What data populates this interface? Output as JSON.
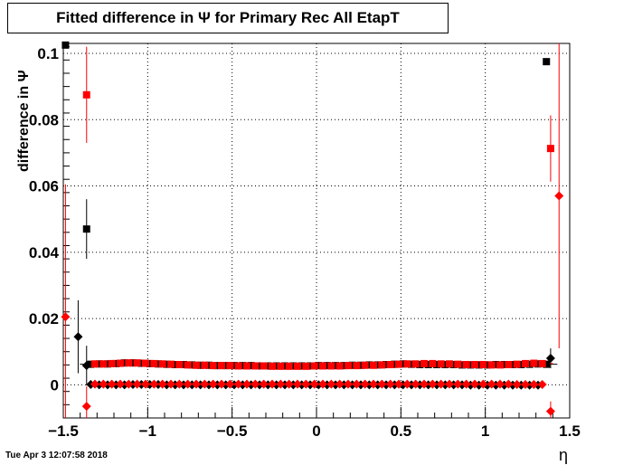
{
  "title": "Fitted difference in  Ψ  for Primary Rec All EtapT",
  "timestamp": "Tue Apr  3 12:07:58 2018",
  "chart_data": {
    "type": "scatter",
    "title": "Fitted difference in  Ψ  for Primary Rec All EtapT",
    "xlabel": "η",
    "ylabel": "difference in  Ψ",
    "xlim": [
      -1.5,
      1.5
    ],
    "ylim": [
      -0.01,
      0.103
    ],
    "grid": true,
    "x_ticks": [
      -1.5,
      -1,
      -0.5,
      0,
      0.5,
      1,
      1.5
    ],
    "x_tick_labels": [
      "−1.5",
      "−1",
      "−0.5",
      "0",
      "0.5",
      "1",
      "1.5"
    ],
    "y_ticks": [
      0,
      0.02,
      0.04,
      0.06,
      0.08,
      0.1
    ],
    "y_tick_labels": [
      "0",
      "0.02",
      "0.04",
      "0.06",
      "0.08",
      "0.1"
    ],
    "series": [
      {
        "color": "#000000",
        "marker": "square",
        "x": [
          -1.487,
          -1.362,
          1.362
        ],
        "y": [
          0.1025,
          0.047,
          0.0975
        ],
        "err": [
          0.0005,
          0.009,
          0.0004
        ]
      },
      {
        "color": "#ff0000",
        "marker": "square",
        "x": [
          -1.362,
          1.387
        ],
        "y": [
          0.0875,
          0.0713
        ],
        "err": [
          0.0145,
          0.01
        ]
      },
      {
        "color": "#000000",
        "marker": "diamond",
        "x": [
          -1.412,
          -1.362,
          1.387
        ],
        "y": [
          0.0145,
          0.0058,
          0.008
        ],
        "err": [
          0.011,
          0.006,
          0.003
        ]
      },
      {
        "color": "#ff0000",
        "marker": "diamond",
        "x": [
          -1.487,
          -1.362,
          1.387,
          1.437
        ],
        "y": [
          0.0205,
          -0.0065,
          -0.008,
          0.057
        ],
        "err": [
          0.04,
          0.006,
          0.003,
          0.046
        ]
      },
      {
        "color": "#000000",
        "marker": "square",
        "name_hidden": true,
        "x_start": -1.3375,
        "x_step": 0.05,
        "y": [
          0.0062,
          0.0063,
          0.0063,
          0.0064,
          0.0066,
          0.0066,
          0.0065,
          0.0064,
          0.0063,
          0.0062,
          0.0061,
          0.0061,
          0.006,
          0.0059,
          0.0059,
          0.0058,
          0.0058,
          0.0058,
          0.0058,
          0.0058,
          0.0057,
          0.0057,
          0.0057,
          0.0057,
          0.0057,
          0.0057,
          0.0057,
          0.0058,
          0.0058,
          0.0058,
          0.0058,
          0.0059,
          0.0059,
          0.006,
          0.006,
          0.0061,
          0.0062,
          0.0063,
          0.0062,
          0.0061,
          0.0061,
          0.0061,
          0.0061,
          0.0061,
          0.006,
          0.006,
          0.006,
          0.006,
          0.0061,
          0.0061,
          0.0061,
          0.0061,
          0.0062,
          0.0063,
          0.0062
        ]
      },
      {
        "color": "#ff0000",
        "marker": "square",
        "name_hidden": true,
        "x_start": -1.3125,
        "x_step": 0.05,
        "y": [
          0.0063,
          0.0063,
          0.0064,
          0.0065,
          0.0066,
          0.0066,
          0.0065,
          0.0064,
          0.0063,
          0.0062,
          0.0061,
          0.006,
          0.0059,
          0.0059,
          0.0058,
          0.0058,
          0.0058,
          0.0057,
          0.0057,
          0.0057,
          0.0057,
          0.0056,
          0.0056,
          0.0056,
          0.0056,
          0.0056,
          0.0057,
          0.0057,
          0.0057,
          0.0057,
          0.0058,
          0.0058,
          0.0059,
          0.0059,
          0.006,
          0.0061,
          0.0062,
          0.0063,
          0.0063,
          0.0064,
          0.0064,
          0.0063,
          0.0063,
          0.0062,
          0.0061,
          0.0061,
          0.0061,
          0.006,
          0.006,
          0.0061,
          0.0062,
          0.0064,
          0.0065,
          0.0064
        ]
      },
      {
        "color": "#000000",
        "marker": "diamond",
        "name_hidden": true,
        "x_start": -1.3375,
        "x_step": 0.05,
        "y": [
          0.0001,
          0.0,
          0.0,
          0.0,
          0.0,
          0.0001,
          0.0001,
          0.0001,
          0.0001,
          0.0,
          0.0,
          0.0,
          0.0,
          0.0,
          0.0,
          0.0,
          0.0,
          0.0,
          0.0,
          0.0,
          0.0,
          0.0,
          0.0,
          0.0,
          0.0,
          0.0,
          0.0,
          0.0,
          0.0,
          0.0,
          0.0,
          0.0,
          0.0,
          0.0,
          0.0,
          0.0,
          0.0,
          0.0,
          0.0,
          0.0,
          0.0,
          0.0,
          0.0,
          0.0,
          0.0,
          -0.0001,
          -0.0001,
          -0.0001,
          -0.0001,
          -0.0001,
          -0.0001,
          -0.0001,
          -0.0001,
          -0.0001
        ]
      },
      {
        "color": "#ff0000",
        "marker": "diamond",
        "name_hidden": true,
        "x_start": -1.3125,
        "x_step": 0.05,
        "y": [
          0.0002,
          0.0002,
          0.0002,
          0.0002,
          0.0002,
          0.0002,
          0.0002,
          0.0002,
          0.0002,
          0.0002,
          0.0002,
          0.0002,
          0.0002,
          0.0002,
          0.0002,
          0.0002,
          0.0002,
          0.0002,
          0.0002,
          0.0002,
          0.0002,
          0.0002,
          0.0002,
          0.0002,
          0.0002,
          0.0002,
          0.0002,
          0.0002,
          0.0002,
          0.0002,
          0.0002,
          0.0002,
          0.0002,
          0.0002,
          0.0002,
          0.0002,
          0.0002,
          0.0002,
          0.0002,
          0.0002,
          0.0002,
          0.0002,
          0.0002,
          0.0002,
          0.0002,
          0.0002,
          0.0002,
          0.0002,
          0.0002,
          0.0002,
          0.0001,
          0.0001,
          0.0001,
          0.0001
        ]
      }
    ]
  }
}
